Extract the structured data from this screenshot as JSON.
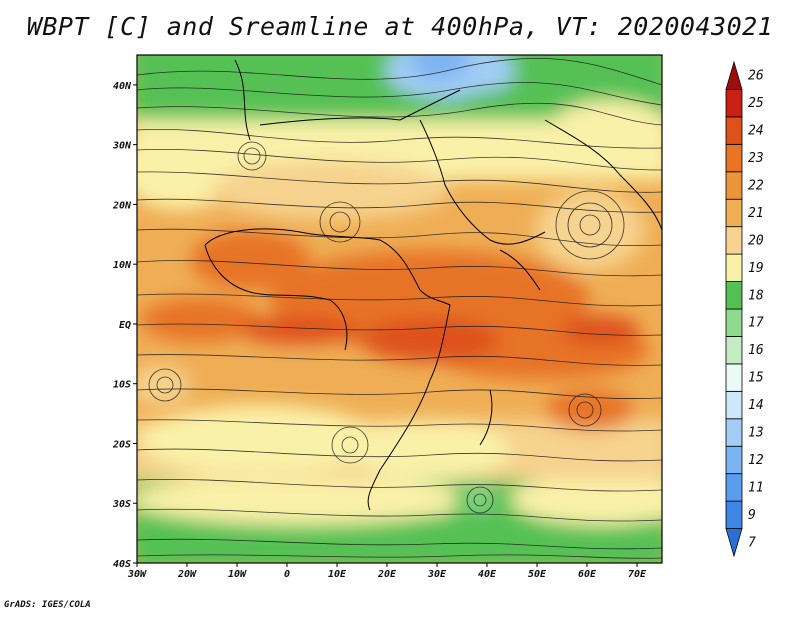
{
  "title": "WBPT [C] and Sreamline at 400hPa, VT: 2020043021",
  "credit": "GrADS: IGES/COLA",
  "map": {
    "lon_range": [
      -30,
      75
    ],
    "lat_range": [
      -40,
      45
    ],
    "x_ticks": [
      "30W",
      "20W",
      "10W",
      "0",
      "10E",
      "20E",
      "30E",
      "40E",
      "50E",
      "60E",
      "70E"
    ],
    "y_ticks": [
      "40S",
      "30S",
      "20S",
      "10S",
      "EQ",
      "10N",
      "20N",
      "30N",
      "40N"
    ]
  },
  "colorbar": {
    "levels": [
      "7",
      "9",
      "11",
      "12",
      "13",
      "14",
      "15",
      "16",
      "17",
      "18",
      "19",
      "20",
      "21",
      "22",
      "23",
      "24",
      "25",
      "26"
    ],
    "colors": [
      "#2b6fd6",
      "#3d86e4",
      "#5a9ced",
      "#7cb4f2",
      "#a3cdf6",
      "#cde6fa",
      "#ecfaf7",
      "#c4edc4",
      "#8fd98f",
      "#55c155",
      "#faf1a9",
      "#f6d38e",
      "#efae55",
      "#ea9638",
      "#e77325",
      "#de511b",
      "#c92013",
      "#9e0c0c"
    ]
  }
}
